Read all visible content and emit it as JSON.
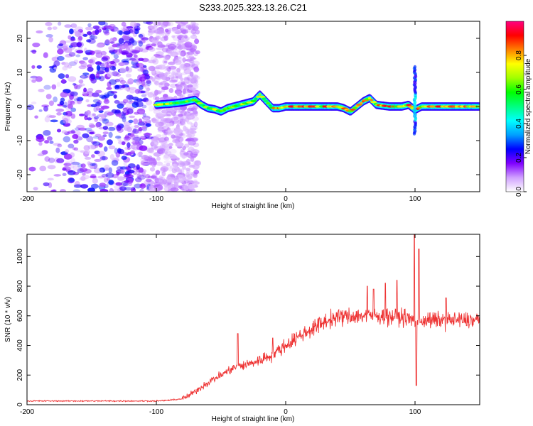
{
  "title": "S233.2025.323.13.26.C21",
  "chart_data": [
    {
      "type": "heatmap",
      "xlabel": "Height of straight line (km)",
      "ylabel": "Frequency (Hz)",
      "xlim": [
        -200,
        150
      ],
      "ylim": [
        -25,
        25
      ],
      "xticks": [
        -200,
        -100,
        0,
        100
      ],
      "yticks": [
        -20,
        -10,
        0,
        10,
        20
      ],
      "colorbar": {
        "label": "Normalized spectral amplitude",
        "range": [
          0,
          1
        ],
        "ticks": [
          0.0,
          0.2,
          0.4,
          0.6,
          0.8
        ],
        "colors": [
          "#ffffff",
          "#d0a0ff",
          "#8000ff",
          "#0000ff",
          "#00a0ff",
          "#00ffff",
          "#00ff80",
          "#00ff00",
          "#a0ff00",
          "#ffff00",
          "#ff8000",
          "#ff0000",
          "#ff0080"
        ]
      },
      "ridge": [
        {
          "x": -100,
          "y": 0.5
        },
        {
          "x": -90,
          "y": 0.8
        },
        {
          "x": -80,
          "y": 1.2
        },
        {
          "x": -70,
          "y": 2.0
        },
        {
          "x": -65,
          "y": 0.5
        },
        {
          "x": -60,
          "y": -0.5
        },
        {
          "x": -55,
          "y": -0.8
        },
        {
          "x": -50,
          "y": -1.5
        },
        {
          "x": -45,
          "y": -0.5
        },
        {
          "x": -40,
          "y": 0.0
        },
        {
          "x": -35,
          "y": 0.5
        },
        {
          "x": -30,
          "y": 1.0
        },
        {
          "x": -25,
          "y": 1.5
        },
        {
          "x": -20,
          "y": 3.5
        },
        {
          "x": -15,
          "y": 1.5
        },
        {
          "x": -10,
          "y": -0.5
        },
        {
          "x": -5,
          "y": -0.5
        },
        {
          "x": 0,
          "y": 0.0
        },
        {
          "x": 10,
          "y": 0.0
        },
        {
          "x": 20,
          "y": 0.0
        },
        {
          "x": 30,
          "y": 0.0
        },
        {
          "x": 40,
          "y": 0.0
        },
        {
          "x": 45,
          "y": -0.5
        },
        {
          "x": 50,
          "y": -1.5
        },
        {
          "x": 55,
          "y": 0.0
        },
        {
          "x": 60,
          "y": 1.5
        },
        {
          "x": 65,
          "y": 2.5
        },
        {
          "x": 70,
          "y": 0.5
        },
        {
          "x": 80,
          "y": 0.0
        },
        {
          "x": 90,
          "y": 0.0
        },
        {
          "x": 95,
          "y": 0.5
        },
        {
          "x": 100,
          "y": -1.0
        },
        {
          "x": 105,
          "y": 0.0
        },
        {
          "x": 120,
          "y": 0.0
        },
        {
          "x": 140,
          "y": 0.0
        },
        {
          "x": 150,
          "y": 0.0
        }
      ],
      "noise_region_x": [
        -200,
        -80
      ],
      "vertical_feature_x": 100,
      "vertical_feature_y": [
        -8,
        12
      ]
    },
    {
      "type": "line",
      "xlabel": "Height of straight line (km)",
      "ylabel": "SNR (10 * v/v)",
      "xlim": [
        -200,
        150
      ],
      "ylim": [
        0,
        1150
      ],
      "xticks": [
        -200,
        -100,
        0,
        100
      ],
      "yticks": [
        0,
        200,
        400,
        600,
        800,
        1000
      ],
      "color": "#ee3333",
      "trend": [
        {
          "x": -200,
          "y": 25
        },
        {
          "x": -150,
          "y": 25
        },
        {
          "x": -100,
          "y": 25
        },
        {
          "x": -90,
          "y": 30
        },
        {
          "x": -80,
          "y": 40
        },
        {
          "x": -75,
          "y": 60
        },
        {
          "x": -70,
          "y": 90
        },
        {
          "x": -65,
          "y": 120
        },
        {
          "x": -60,
          "y": 150
        },
        {
          "x": -50,
          "y": 200
        },
        {
          "x": -40,
          "y": 250
        },
        {
          "x": -30,
          "y": 270
        },
        {
          "x": -20,
          "y": 300
        },
        {
          "x": -10,
          "y": 340
        },
        {
          "x": 0,
          "y": 400
        },
        {
          "x": 10,
          "y": 460
        },
        {
          "x": 20,
          "y": 510
        },
        {
          "x": 30,
          "y": 560
        },
        {
          "x": 40,
          "y": 590
        },
        {
          "x": 50,
          "y": 600
        },
        {
          "x": 70,
          "y": 600
        },
        {
          "x": 90,
          "y": 590
        },
        {
          "x": 100,
          "y": 570
        },
        {
          "x": 110,
          "y": 570
        },
        {
          "x": 130,
          "y": 570
        },
        {
          "x": 150,
          "y": 570
        }
      ],
      "spikes": [
        {
          "x": -37,
          "y": 480
        },
        {
          "x": -10,
          "y": 450
        },
        {
          "x": 50,
          "y": 560
        },
        {
          "x": 63,
          "y": 800
        },
        {
          "x": 68,
          "y": 780
        },
        {
          "x": 77,
          "y": 820
        },
        {
          "x": 86,
          "y": 840
        },
        {
          "x": 99.5,
          "y": 1150
        },
        {
          "x": 101,
          "y": 130
        },
        {
          "x": 103,
          "y": 1050
        },
        {
          "x": 124,
          "y": 720
        }
      ]
    }
  ]
}
